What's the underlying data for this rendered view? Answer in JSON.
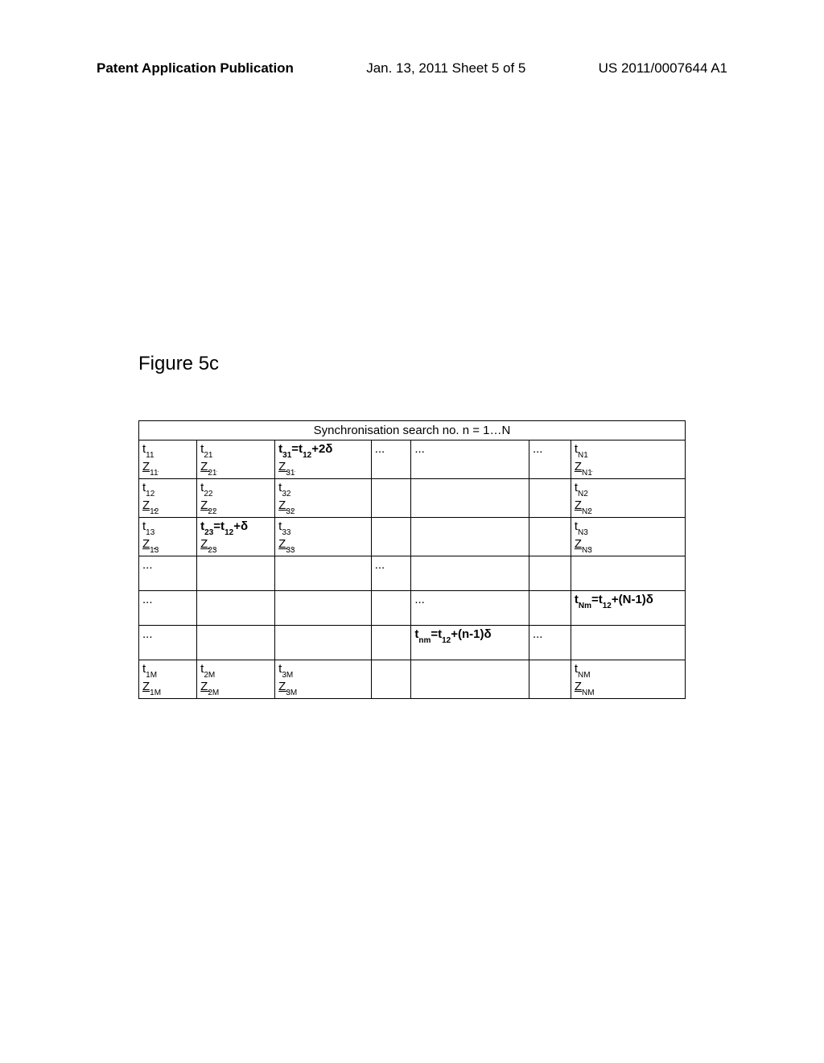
{
  "header": {
    "left": "Patent Application Publication",
    "center": "Jan. 13, 2011  Sheet 5 of 5",
    "right": "US 2011/0007644 A1"
  },
  "figure_title": "Figure 5c",
  "table": {
    "caption": "Synchronisation search no. n = 1…N",
    "columns": [
      "col1",
      "col2",
      "col3",
      "col4",
      "col5",
      "col6",
      "col7"
    ],
    "rows": [
      {
        "c1": {
          "t": "t",
          "ts": "11",
          "z": "Z",
          "zs": "11",
          "tbold": false,
          "uz": true
        },
        "c2": {
          "t": "t",
          "ts": "21",
          "z": "Z",
          "zs": "21",
          "uz": true
        },
        "c3": {
          "html": "<span class='b'>t<span class='sub'>31</span>=t<span class='sub'>12</span>+2δ</span><br><span class='u'>Z<span class='sub'>31</span></span>",
          "raw": true,
          "uz": true
        },
        "c4": {
          "text": "..."
        },
        "c5": {
          "text": "..."
        },
        "c6": {
          "text": "..."
        },
        "c7": {
          "t": "t",
          "ts": "N1",
          "z": "Z",
          "zs": "N1",
          "uz": true
        }
      },
      {
        "c1": {
          "t": "t",
          "ts": "12",
          "z": "Z",
          "zs": "12",
          "uz": true
        },
        "c2": {
          "t": "t",
          "ts": "22",
          "z": "Z",
          "zs": "22",
          "uz": true
        },
        "c3": {
          "t": "t",
          "ts": "32",
          "z": "Z",
          "zs": "32",
          "uz": true
        },
        "c4": {
          "text": ""
        },
        "c5": {
          "text": ""
        },
        "c6": {
          "text": ""
        },
        "c7": {
          "t": "t",
          "ts": "N2",
          "z": "Z",
          "zs": "N2",
          "uz": true
        }
      },
      {
        "c1": {
          "t": "t",
          "ts": "13",
          "z": "Z",
          "zs": "13",
          "uz": true
        },
        "c2": {
          "html": "<span class='b'>t<span class='sub'>23</span>=t<span class='sub'>12</span>+δ</span><br><span class='u'>Z<span class='sub'>23</span></span>",
          "raw": true
        },
        "c3": {
          "t": "t",
          "ts": "33",
          "z": "Z",
          "zs": "33",
          "uz": true
        },
        "c4": {
          "text": ""
        },
        "c5": {
          "text": ""
        },
        "c6": {
          "text": ""
        },
        "c7": {
          "t": "t",
          "ts": "N3",
          "z": "Z",
          "zs": "N3",
          "uz": true
        }
      },
      {
        "c1": {
          "text": "..."
        },
        "c2": {
          "text": ""
        },
        "c3": {
          "text": ""
        },
        "c4": {
          "text": "..."
        },
        "c5": {
          "text": ""
        },
        "c6": {
          "text": ""
        },
        "c7": {
          "text": ""
        }
      },
      {
        "c1": {
          "text": "..."
        },
        "c2": {
          "text": ""
        },
        "c3": {
          "text": ""
        },
        "c4": {
          "text": ""
        },
        "c5": {
          "text": "..."
        },
        "c6": {
          "text": ""
        },
        "c7": {
          "html": "<span class='b'>t<span class='sub'>Nm</span>=t<span class='sub'>12</span>+(N-1)δ</span>",
          "raw": true
        }
      },
      {
        "c1": {
          "text": "..."
        },
        "c2": {
          "text": ""
        },
        "c3": {
          "text": ""
        },
        "c4": {
          "text": ""
        },
        "c5": {
          "html": "<span class='b'>t<span class='sub'>nm</span>=t<span class='sub'>12</span>+(n-1)δ</span>",
          "raw": true
        },
        "c6": {
          "text": "..."
        },
        "c7": {
          "text": ""
        }
      },
      {
        "c1": {
          "t": "t",
          "ts": "1M",
          "z": "Z",
          "zs": "1M",
          "uz": true
        },
        "c2": {
          "t": "t",
          "ts": "2M",
          "z": "Z",
          "zs": "2M",
          "uz": true
        },
        "c3": {
          "t": "t",
          "ts": "3M",
          "z": "Z",
          "zs": "3M",
          "uz": true
        },
        "c4": {
          "text": ""
        },
        "c5": {
          "text": ""
        },
        "c6": {
          "text": ""
        },
        "c7": {
          "t": "t",
          "ts": "NM",
          "z": "Z",
          "zs": "NM",
          "uz": true
        }
      }
    ]
  }
}
